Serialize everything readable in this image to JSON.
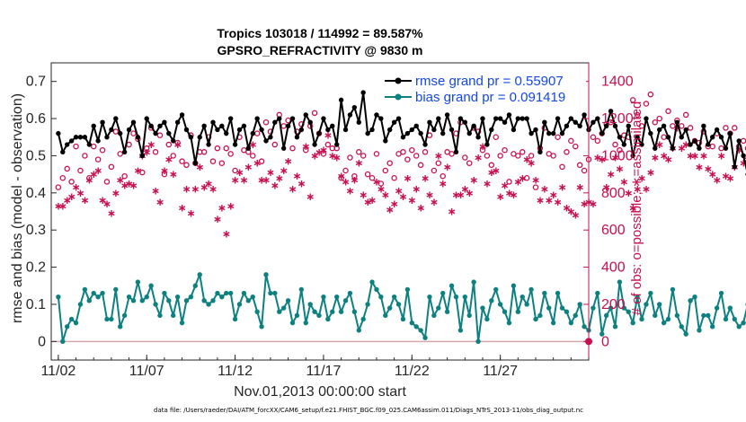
{
  "title_line1": "Tropics 103018 / 114992 = 89.587%",
  "title_line2": "GPSRO_REFRACTIVITY @ 9830 m",
  "ylabel_left": "rmse and bias (model - observation)",
  "ylabel_right": "# of obs: o=possible; ∗=assimilated",
  "xlabel": "Nov.01,2013 00:00:00 start",
  "footnote": "data file: /Users/raeder/DAI/ATM_forcXX/CAM6_setup/f.e21.FHIST_BGC.f09_025.CAM6assim.011/Diags_NTrS_2013-11/obs_diag_output.nc",
  "legend": [
    {
      "label": "rmse grand pr = 0.55907",
      "color": "#000000",
      "marker": "filled-circle"
    },
    {
      "label": "bias grand pr = 0.091419",
      "color": "#0d8080",
      "marker": "filled-circle"
    }
  ],
  "colors": {
    "rmse": "#000000",
    "bias": "#0d8080",
    "obs": "#c8104f",
    "zero_line": "#d8a8a8"
  },
  "chart_data": {
    "type": "line",
    "x_unit": "days since Nov.01,2013 00:00:00",
    "x_step": 0.25,
    "xlim": [
      0.6,
      31.0
    ],
    "ylim_left": [
      -0.05,
      0.75
    ],
    "ylim_right": [
      -100,
      1500
    ],
    "yticks_left": [
      0,
      0.1,
      0.2,
      0.3,
      0.4,
      0.5,
      0.6,
      0.7
    ],
    "yticks_left_labels": [
      "0",
      "0.1",
      "0.2",
      "0.3",
      "0.4",
      "0.5",
      "0.6",
      "0.7"
    ],
    "yticks_right": [
      0,
      200,
      400,
      600,
      800,
      1000,
      1200,
      1400
    ],
    "yticks_right_labels": [
      "0",
      "200",
      "400",
      "600",
      "800",
      "1000",
      "1200",
      "1400"
    ],
    "xticks": [
      1,
      6,
      11,
      16,
      21,
      26
    ],
    "xtick_labels": [
      "11/02",
      "11/07",
      "11/12",
      "11/17",
      "11/22",
      "11/27"
    ],
    "series": [
      {
        "name": "rmse",
        "axis": "left",
        "values": [
          0.56,
          0.51,
          0.53,
          0.54,
          0.55,
          0.55,
          0.55,
          0.53,
          0.58,
          0.54,
          0.59,
          0.55,
          0.57,
          0.6,
          0.56,
          0.51,
          0.57,
          0.59,
          0.55,
          0.5,
          0.6,
          0.58,
          0.56,
          0.58,
          0.59,
          0.56,
          0.54,
          0.59,
          0.61,
          0.57,
          0.55,
          0.48,
          0.55,
          0.58,
          0.53,
          0.59,
          0.57,
          0.58,
          0.56,
          0.6,
          0.53,
          0.57,
          0.58,
          0.52,
          0.56,
          0.6,
          0.57,
          0.54,
          0.55,
          0.59,
          0.6,
          0.52,
          0.58,
          0.6,
          0.55,
          0.57,
          0.61,
          0.59,
          0.53,
          0.56,
          0.6,
          0.57,
          0.58,
          0.53,
          0.65,
          0.57,
          0.61,
          0.63,
          0.59,
          0.67,
          0.56,
          0.57,
          0.61,
          0.6,
          0.54,
          0.57,
          0.59,
          0.6,
          0.55,
          0.56,
          0.57,
          0.58,
          0.56,
          0.53,
          0.59,
          0.57,
          0.6,
          0.56,
          0.61,
          0.57,
          0.51,
          0.6,
          0.59,
          0.56,
          0.58,
          0.55,
          0.6,
          0.53,
          0.57,
          0.6,
          0.6,
          0.59,
          0.61,
          0.57,
          0.6,
          0.6,
          0.6,
          0.56,
          0.57,
          0.51,
          0.59,
          0.56,
          0.56,
          0.6,
          0.56,
          0.58,
          0.6,
          0.59,
          0.58,
          0.61,
          0.57,
          0.59,
          0.6,
          0.56,
          0.58,
          0.62,
          0.58,
          0.55,
          0.53,
          0.58,
          0.5,
          0.55,
          0.53,
          0.6,
          0.56,
          0.52,
          0.57,
          0.58,
          0.55,
          0.52,
          0.59,
          0.55,
          0.57,
          0.53,
          0.54,
          0.52,
          0.58,
          0.53,
          0.55,
          0.57,
          0.55,
          0.52,
          0.56,
          0.47,
          0.54,
          0.5,
          0.45,
          0.51,
          0.53,
          0.53,
          0.52,
          0.49,
          0.55,
          0.53,
          0.54,
          0.56,
          0.54,
          0.57,
          0.59,
          0.54,
          0.52,
          0.58,
          0.55,
          0.53,
          0.51,
          0.54,
          0.52,
          0.55,
          0.52,
          0.5,
          0.57,
          0.55,
          0.51,
          0.53,
          0.55,
          0.53,
          0.57,
          0.55,
          0.52,
          0.56,
          0.55,
          0.53
        ]
      },
      {
        "name": "bias",
        "axis": "left",
        "values": [
          0.12,
          0.0,
          0.04,
          0.06,
          0.05,
          0.1,
          0.14,
          0.11,
          0.13,
          0.12,
          0.13,
          0.06,
          0.06,
          0.14,
          0.04,
          0.07,
          0.12,
          0.11,
          0.16,
          0.11,
          0.12,
          0.15,
          0.1,
          0.07,
          0.13,
          0.11,
          0.07,
          0.12,
          0.05,
          0.11,
          0.12,
          0.15,
          0.18,
          0.11,
          0.1,
          0.11,
          0.13,
          0.12,
          0.13,
          0.13,
          0.06,
          0.1,
          0.13,
          0.11,
          0.12,
          0.08,
          0.04,
          0.18,
          0.13,
          0.13,
          0.08,
          0.09,
          0.11,
          0.05,
          0.07,
          0.14,
          0.05,
          0.1,
          0.08,
          0.07,
          0.12,
          0.06,
          0.08,
          0.12,
          0.08,
          0.11,
          0.13,
          0.08,
          0.03,
          0.06,
          0.1,
          0.16,
          0.14,
          0.12,
          0.07,
          0.09,
          0.12,
          0.1,
          0.06,
          0.14,
          0.05,
          0.04,
          0.03,
          0.01,
          0.12,
          0.07,
          0.09,
          0.13,
          0.08,
          0.15,
          0.12,
          0.03,
          0.12,
          0.07,
          0.16,
          0.0,
          0.09,
          0.06,
          0.11,
          0.14,
          0.1,
          0.08,
          0.05,
          0.15,
          0.08,
          0.12,
          0.1,
          0.14,
          0.06,
          0.07,
          0.13,
          0.09,
          0.05,
          0.13,
          0.09,
          0.08,
          0.05,
          0.07,
          0.1,
          0.04,
          0.03,
          0.09,
          0.13,
          0.02,
          0.07,
          0.09,
          0.04,
          0.16,
          0.09,
          0.08,
          0.05,
          0.12,
          0.06,
          0.1,
          0.13,
          0.07,
          0.1,
          0.05,
          0.06,
          0.14,
          0.07,
          0.04,
          0.02,
          0.11,
          0.12,
          0.03,
          0.07,
          0.07,
          0.04,
          0.09,
          0.13,
          0.06,
          0.09,
          0.06,
          0.04,
          0.05,
          0.1,
          0.14,
          0.02,
          0.05,
          0.06,
          0.09,
          0.07,
          0.14,
          0.06,
          0.04,
          0.11,
          0.06,
          0.06,
          0.1,
          0.1,
          0.08,
          0.05,
          0.09,
          0.07,
          0.1,
          0.12,
          0.05,
          0.09,
          0.04,
          0.06,
          0.04,
          0.08,
          0.11,
          0.04,
          0.09,
          0.08,
          0.07,
          0.05,
          0.14,
          0.12,
          0.06,
          0.07,
          0.07
        ]
      },
      {
        "name": "obs_possible",
        "axis": "right",
        "marker": "o",
        "values": [
          830,
          880,
          930,
          860,
          1050,
          920,
          1000,
          880,
          1050,
          980,
          1030,
          860,
          940,
          1130,
          1010,
          890,
          1060,
          1120,
          1090,
          910,
          1040,
          1150,
          1020,
          1110,
          900,
          1060,
          1000,
          1070,
          970,
          950,
          1110,
          960,
          1020,
          1020,
          1100,
          970,
          1040,
          960,
          1040,
          1010,
          920,
          1100,
          1030,
          1020,
          1000,
          1120,
          970,
          1180,
          1130,
          1060,
          1220,
          1160,
          1190,
          1040,
          1130,
          1170,
          1030,
          1160,
          1230,
          1120,
          1010,
          1060,
          1040,
          1040,
          880,
          920,
          990,
          890,
          1020,
          1000,
          900,
          880,
          1010,
          850,
          920,
          960,
          880,
          1010,
          1020,
          980,
          1030,
          1000,
          950,
          1020,
          1110,
          920,
          960,
          890,
          1020,
          1010,
          1120,
          1180,
          990,
          960,
          1150,
          1130,
          1030,
          1000,
          950,
          1100,
          1000,
          1030,
          860,
          1010,
          1000,
          1020,
          880,
          1000,
          830,
          1040,
          1150,
          1010,
          1000,
          1100,
          940,
          1020,
          1080,
          1050,
          950,
          920,
          980,
          1100,
          1080,
          1120,
          1170,
          1180,
          1060,
          1030,
          1110,
          1100,
          1300,
          1220,
          1160,
          1280,
          1330,
          1180,
          1200,
          1100,
          1240,
          1160,
          1190,
          1160,
          1220,
          1150,
          1080,
          1070,
          1130,
          1050,
          1050,
          1120,
          1040,
          1150,
          1120,
          1150,
          1050,
          1080,
          1040,
          1020,
          1020,
          980,
          1050,
          1000,
          1050,
          1040,
          1000,
          1090,
          1070,
          1010,
          1020,
          1110,
          1030,
          1060,
          1040,
          1080,
          1100,
          1010,
          1100,
          1060,
          1050,
          1100,
          1080,
          1030,
          1130,
          1100,
          1050,
          1100,
          1060,
          1010,
          1040,
          1020
        ]
      },
      {
        "name": "obs_assimilated",
        "axis": "right",
        "marker": "*",
        "values": [
          730,
          730,
          760,
          780,
          830,
          800,
          760,
          870,
          900,
          920,
          760,
          740,
          690,
          800,
          870,
          840,
          850,
          840,
          920,
          1000,
          1020,
          1060,
          810,
          750,
          920,
          980,
          900,
          1060,
          720,
          820,
          690,
          820,
          940,
          830,
          850,
          820,
          660,
          720,
          580,
          730,
          870,
          910,
          870,
          940,
          1060,
          960,
          870,
          870,
          910,
          840,
          880,
          920,
          970,
          820,
          890,
          850,
          1050,
          780,
          1000,
          1020,
          1030,
          1110,
          1000,
          990,
          890,
          860,
          810,
          870,
          960,
          790,
          750,
          760,
          860,
          820,
          790,
          710,
          740,
          810,
          780,
          880,
          760,
          820,
          720,
          880,
          790,
          750,
          1000,
          850,
          940,
          700,
          790,
          790,
          820,
          800,
          870,
          990,
          1050,
          850,
          910,
          920,
          780,
          840,
          800,
          790,
          860,
          880,
          980,
          960,
          870,
          760,
          820,
          760,
          790,
          750,
          830,
          720,
          700,
          680,
          830,
          740,
          750,
          740,
          990,
          980,
          830,
          900,
          990,
          930,
          860,
          800,
          720,
          820,
          880,
          820,
          910,
          990,
          1060,
          1000,
          980,
          1040,
          1150,
          1040,
          1060,
          1000,
          1000,
          940,
          1000,
          930,
          900,
          870,
          1000,
          890,
          880,
          940,
          1030,
          960,
          980,
          900,
          1000,
          820,
          830,
          970,
          900,
          880,
          850,
          790,
          740,
          880,
          820,
          1000,
          940,
          970,
          900,
          810,
          910,
          860,
          730,
          790,
          830,
          980,
          960,
          980,
          990,
          950,
          1000,
          1010,
          980,
          1000
        ]
      }
    ]
  }
}
